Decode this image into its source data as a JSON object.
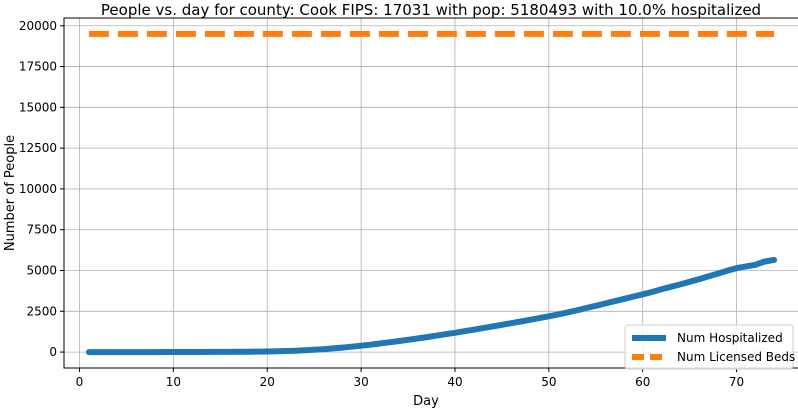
{
  "chart_data": {
    "type": "line",
    "title": "People vs. day for county: Cook FIPS: 17031 with pop: 5180493 with 10.0% hospitalized",
    "xlabel": "Day",
    "ylabel": "Number of People",
    "xlim": [
      -1.65,
      76.65
    ],
    "ylim": [
      -975,
      20475
    ],
    "xticks": [
      0,
      10,
      20,
      30,
      40,
      50,
      60,
      70
    ],
    "yticks": [
      0,
      2500,
      5000,
      7500,
      10000,
      12500,
      15000,
      17500,
      20000
    ],
    "grid": true,
    "legend_position": "lower right",
    "series": [
      {
        "name": "Num Hospitalized",
        "color": "#1f77b4",
        "style": "solid",
        "x": [
          1,
          2,
          3,
          4,
          5,
          6,
          7,
          8,
          9,
          10,
          11,
          12,
          13,
          14,
          15,
          16,
          17,
          18,
          19,
          20,
          21,
          22,
          23,
          24,
          25,
          26,
          27,
          28,
          29,
          30,
          31,
          32,
          33,
          34,
          35,
          36,
          37,
          38,
          39,
          40,
          41,
          42,
          43,
          44,
          45,
          46,
          47,
          48,
          49,
          50,
          51,
          52,
          53,
          54,
          55,
          56,
          57,
          58,
          59,
          60,
          61,
          62,
          63,
          64,
          65,
          66,
          67,
          68,
          69,
          70,
          71,
          72,
          73,
          74
        ],
        "values": [
          0,
          0,
          0,
          0,
          1,
          1,
          2,
          2,
          3,
          4,
          5,
          6,
          7,
          9,
          11,
          14,
          18,
          23,
          30,
          38,
          50,
          65,
          85,
          110,
          140,
          180,
          225,
          275,
          330,
          390,
          455,
          525,
          600,
          675,
          755,
          835,
          920,
          1005,
          1095,
          1185,
          1280,
          1375,
          1470,
          1570,
          1670,
          1770,
          1875,
          1980,
          2085,
          2195,
          2310,
          2430,
          2560,
          2700,
          2840,
          2980,
          3120,
          3260,
          3400,
          3540,
          3680,
          3850,
          4000,
          4150,
          4310,
          4470,
          4640,
          4810,
          4990,
          5150,
          5250,
          5350,
          5550,
          5650
        ]
      },
      {
        "name": "Num Licensed Beds",
        "color": "#ff7f0e",
        "style": "dashed",
        "x": [
          1,
          74
        ],
        "values": [
          19500,
          19500
        ]
      }
    ]
  }
}
